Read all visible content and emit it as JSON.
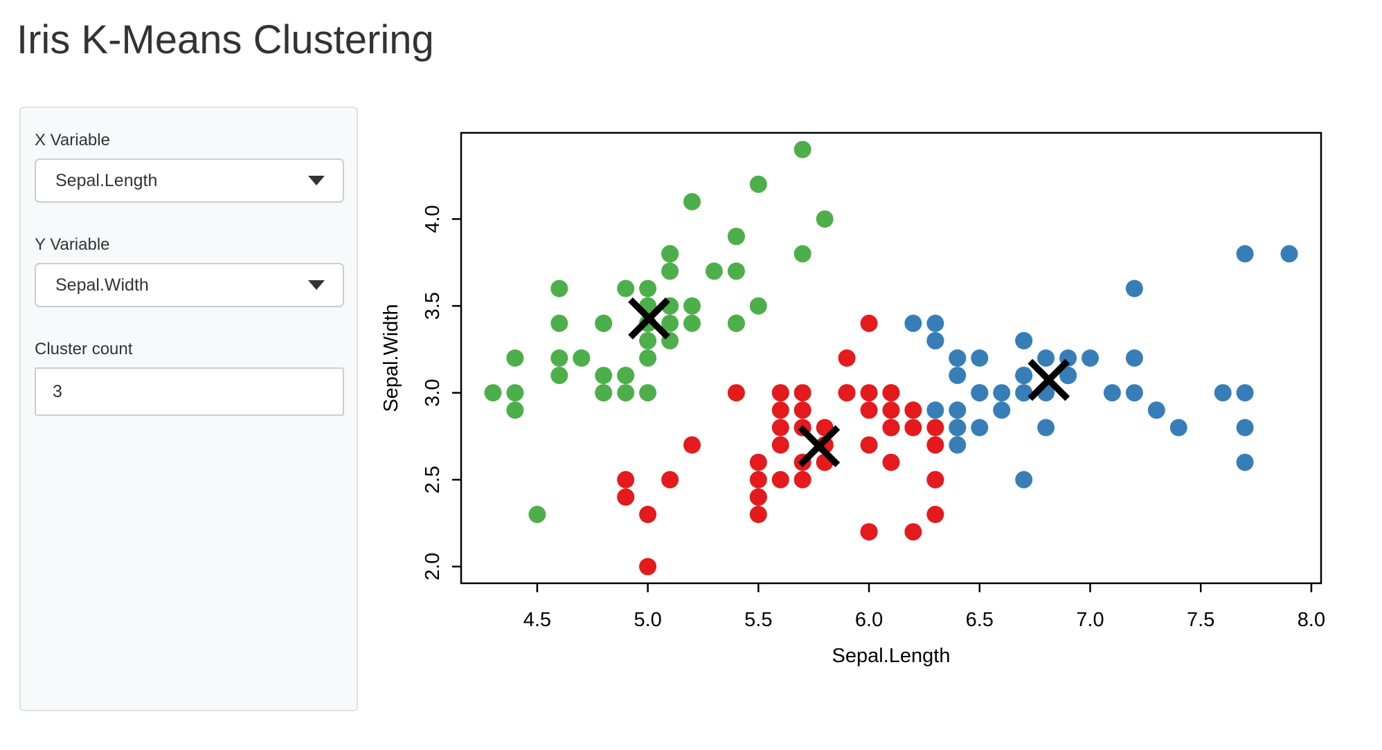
{
  "app": {
    "title": "Iris K-Means Clustering"
  },
  "sidebar": {
    "x_variable": {
      "label": "X Variable",
      "value": "Sepal.Length",
      "icon": "caret-down-icon"
    },
    "y_variable": {
      "label": "Y Variable",
      "value": "Sepal.Width",
      "icon": "caret-down-icon"
    },
    "cluster_count": {
      "label": "Cluster count",
      "value": "3"
    }
  },
  "chart_data": {
    "type": "scatter",
    "title": "",
    "xlabel": "Sepal.Length",
    "ylabel": "Sepal.Width",
    "xlim": [
      4.156,
      8.044
    ],
    "ylim": [
      1.904,
      4.496
    ],
    "xticks": [
      "4.5",
      "5.0",
      "5.5",
      "6.0",
      "6.5",
      "7.0",
      "7.5",
      "8.0"
    ],
    "yticks": [
      "2.0",
      "2.5",
      "3.0",
      "3.5",
      "4.0"
    ],
    "grid": false,
    "legend": "none",
    "point_color_green": "#4DAF4A",
    "point_color_red": "#E41A1C",
    "point_color_blue": "#377EB8",
    "series": [
      {
        "name": "cluster-green",
        "color": "#4DAF4A",
        "points": [
          [
            5.1,
            3.5
          ],
          [
            4.9,
            3.0
          ],
          [
            4.7,
            3.2
          ],
          [
            4.6,
            3.1
          ],
          [
            5.0,
            3.6
          ],
          [
            5.4,
            3.9
          ],
          [
            4.6,
            3.4
          ],
          [
            5.0,
            3.4
          ],
          [
            4.4,
            2.9
          ],
          [
            4.9,
            3.1
          ],
          [
            5.4,
            3.7
          ],
          [
            4.8,
            3.4
          ],
          [
            4.8,
            3.0
          ],
          [
            4.3,
            3.0
          ],
          [
            5.8,
            4.0
          ],
          [
            5.7,
            4.4
          ],
          [
            5.4,
            3.9
          ],
          [
            5.1,
            3.5
          ],
          [
            5.7,
            3.8
          ],
          [
            5.1,
            3.8
          ],
          [
            5.4,
            3.4
          ],
          [
            5.1,
            3.7
          ],
          [
            4.6,
            3.6
          ],
          [
            5.1,
            3.3
          ],
          [
            4.8,
            3.4
          ],
          [
            5.0,
            3.0
          ],
          [
            5.0,
            3.4
          ],
          [
            5.2,
            3.5
          ],
          [
            5.2,
            3.4
          ],
          [
            4.7,
            3.2
          ],
          [
            4.8,
            3.1
          ],
          [
            5.4,
            3.4
          ],
          [
            5.2,
            4.1
          ],
          [
            5.5,
            4.2
          ],
          [
            4.9,
            3.1
          ],
          [
            5.0,
            3.2
          ],
          [
            5.5,
            3.5
          ],
          [
            4.9,
            3.6
          ],
          [
            4.4,
            3.0
          ],
          [
            5.1,
            3.4
          ],
          [
            5.0,
            3.5
          ],
          [
            4.5,
            2.3
          ],
          [
            4.4,
            3.2
          ],
          [
            5.0,
            3.5
          ],
          [
            5.1,
            3.8
          ],
          [
            4.8,
            3.0
          ],
          [
            5.1,
            3.8
          ],
          [
            4.6,
            3.2
          ],
          [
            5.3,
            3.7
          ],
          [
            5.0,
            3.3
          ]
        ]
      },
      {
        "name": "cluster-red",
        "color": "#E41A1C",
        "points": [
          [
            5.5,
            2.3
          ],
          [
            5.7,
            2.8
          ],
          [
            4.9,
            2.4
          ],
          [
            5.2,
            2.7
          ],
          [
            5.0,
            2.0
          ],
          [
            5.9,
            3.0
          ],
          [
            6.0,
            2.2
          ],
          [
            6.1,
            2.9
          ],
          [
            5.6,
            2.9
          ],
          [
            5.6,
            3.0
          ],
          [
            5.8,
            2.7
          ],
          [
            6.2,
            2.2
          ],
          [
            5.6,
            2.5
          ],
          [
            5.9,
            3.2
          ],
          [
            6.1,
            2.8
          ],
          [
            6.3,
            2.5
          ],
          [
            6.1,
            2.8
          ],
          [
            6.0,
            2.9
          ],
          [
            5.7,
            2.6
          ],
          [
            5.5,
            2.4
          ],
          [
            5.5,
            2.4
          ],
          [
            5.8,
            2.7
          ],
          [
            6.0,
            2.7
          ],
          [
            5.4,
            3.0
          ],
          [
            6.0,
            3.4
          ],
          [
            6.3,
            2.3
          ],
          [
            5.6,
            3.0
          ],
          [
            5.5,
            2.5
          ],
          [
            5.5,
            2.6
          ],
          [
            6.1,
            3.0
          ],
          [
            5.8,
            2.6
          ],
          [
            5.0,
            2.3
          ],
          [
            5.6,
            2.7
          ],
          [
            5.7,
            3.0
          ],
          [
            5.7,
            2.9
          ],
          [
            6.2,
            2.9
          ],
          [
            5.1,
            2.5
          ],
          [
            5.7,
            2.8
          ],
          [
            5.8,
            2.7
          ],
          [
            4.9,
            2.5
          ],
          [
            5.7,
            2.5
          ],
          [
            5.8,
            2.8
          ],
          [
            6.0,
            2.2
          ],
          [
            5.6,
            2.8
          ],
          [
            6.3,
            2.7
          ],
          [
            6.2,
            2.8
          ],
          [
            6.1,
            3.0
          ],
          [
            6.3,
            2.8
          ],
          [
            6.1,
            2.6
          ],
          [
            6.0,
            3.0
          ],
          [
            5.8,
            2.7
          ],
          [
            6.3,
            2.5
          ],
          [
            5.9,
            3.0
          ]
        ]
      },
      {
        "name": "cluster-blue",
        "color": "#377EB8",
        "points": [
          [
            7.0,
            3.2
          ],
          [
            6.4,
            3.2
          ],
          [
            6.9,
            3.1
          ],
          [
            6.5,
            2.8
          ],
          [
            6.3,
            3.3
          ],
          [
            6.6,
            2.9
          ],
          [
            6.7,
            3.1
          ],
          [
            6.4,
            2.9
          ],
          [
            6.6,
            3.0
          ],
          [
            6.8,
            2.8
          ],
          [
            6.7,
            3.0
          ],
          [
            6.7,
            3.1
          ],
          [
            6.3,
            3.3
          ],
          [
            7.1,
            3.0
          ],
          [
            6.3,
            2.9
          ],
          [
            6.5,
            3.0
          ],
          [
            7.6,
            3.0
          ],
          [
            7.3,
            2.9
          ],
          [
            6.7,
            2.5
          ],
          [
            7.2,
            3.6
          ],
          [
            6.5,
            3.2
          ],
          [
            6.4,
            2.7
          ],
          [
            6.8,
            3.0
          ],
          [
            6.4,
            3.2
          ],
          [
            6.5,
            3.0
          ],
          [
            7.7,
            3.8
          ],
          [
            7.7,
            2.6
          ],
          [
            6.9,
            3.2
          ],
          [
            7.7,
            2.8
          ],
          [
            6.7,
            3.3
          ],
          [
            7.2,
            3.2
          ],
          [
            6.4,
            2.8
          ],
          [
            7.2,
            3.0
          ],
          [
            7.4,
            2.8
          ],
          [
            7.9,
            3.8
          ],
          [
            6.4,
            2.8
          ],
          [
            7.7,
            3.0
          ],
          [
            6.3,
            3.4
          ],
          [
            6.4,
            3.1
          ],
          [
            6.9,
            3.1
          ],
          [
            6.7,
            3.1
          ],
          [
            6.9,
            3.1
          ],
          [
            6.8,
            3.2
          ],
          [
            6.7,
            3.3
          ],
          [
            6.7,
            3.0
          ],
          [
            6.5,
            3.0
          ],
          [
            6.2,
            3.4
          ]
        ]
      }
    ],
    "centers": {
      "marker": "x",
      "color": "#000000",
      "points": [
        [
          5.006,
          3.428
        ],
        [
          5.774,
          2.693
        ],
        [
          6.813,
          3.074
        ]
      ]
    }
  }
}
